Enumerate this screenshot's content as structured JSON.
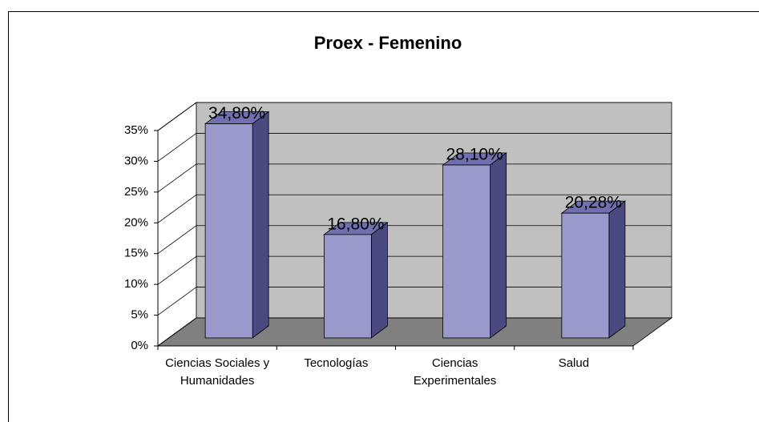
{
  "chart_data": {
    "type": "bar3d",
    "title": "Proex - Femenino",
    "categories": [
      "Ciencias Sociales y Humanidades",
      "Tecnologías",
      "Ciencias Experimentales",
      "Salud"
    ],
    "values": [
      34.8,
      16.8,
      28.1,
      20.28
    ],
    "value_labels": [
      "34,80%",
      "16,80%",
      "28,10%",
      "20,28%"
    ],
    "color": "#9999cc",
    "ylim": [
      0,
      35
    ],
    "yticks": [
      {
        "value": 0,
        "label": "0%"
      },
      {
        "value": 5,
        "label": "5%"
      },
      {
        "value": 10,
        "label": "10%"
      },
      {
        "value": 15,
        "label": "15%"
      },
      {
        "value": 20,
        "label": "20%"
      },
      {
        "value": 25,
        "label": "25%"
      },
      {
        "value": 30,
        "label": "30%"
      },
      {
        "value": 35,
        "label": "35%"
      }
    ],
    "grid": true
  }
}
